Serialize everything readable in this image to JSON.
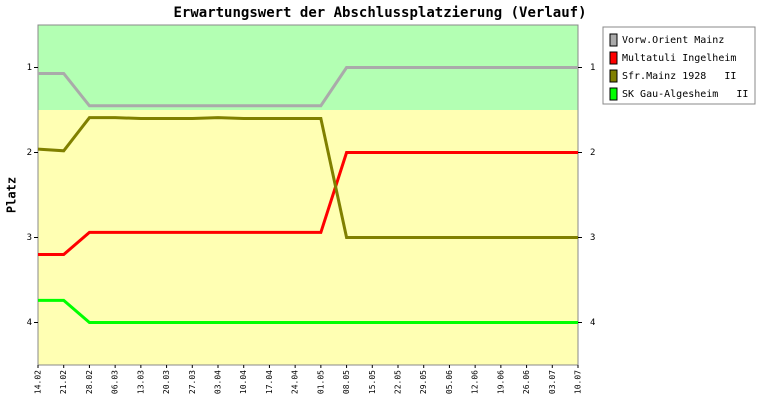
{
  "chart_data": {
    "type": "line",
    "title": "Erwartungswert der Abschlussplatzierung (Verlauf)",
    "y_label": "Platz",
    "categories": [
      "14.02",
      "21.02",
      "28.02",
      "06.03",
      "13.03",
      "20.03",
      "27.03",
      "03.04",
      "10.04",
      "17.04",
      "24.04",
      "01.05",
      "08.05",
      "15.05",
      "22.05",
      "29.05",
      "05.06",
      "12.06",
      "19.06",
      "26.06",
      "03.07",
      "10.07"
    ],
    "ylim": [
      4.5,
      0.5
    ],
    "yticks": [
      1,
      2,
      3,
      4
    ],
    "bands": [
      {
        "from": 0.5,
        "to": 1.5,
        "color": "#b3ffb3"
      },
      {
        "from": 1.5,
        "to": 4.5,
        "color": "#ffffb3"
      }
    ],
    "series": [
      {
        "name": "Vorw.Orient Mainz",
        "color": "#aaaaaa",
        "values": [
          1.07,
          1.07,
          1.45,
          1.45,
          1.45,
          1.45,
          1.45,
          1.45,
          1.45,
          1.45,
          1.45,
          1.45,
          1.0,
          1.0,
          1.0,
          1.0,
          1.0,
          1.0,
          1.0,
          1.0,
          1.0,
          1.0
        ]
      },
      {
        "name": "Multatuli Ingelheim",
        "color": "#ff0000",
        "values": [
          3.2,
          3.2,
          2.94,
          2.94,
          2.94,
          2.94,
          2.94,
          2.94,
          2.94,
          2.94,
          2.94,
          2.94,
          2.0,
          2.0,
          2.0,
          2.0,
          2.0,
          2.0,
          2.0,
          2.0,
          2.0,
          2.0
        ]
      },
      {
        "name": "Sfr.Mainz 1928   II",
        "color": "#808000",
        "values": [
          1.96,
          1.98,
          1.59,
          1.59,
          1.6,
          1.6,
          1.6,
          1.59,
          1.6,
          1.6,
          1.6,
          1.6,
          3.0,
          3.0,
          3.0,
          3.0,
          3.0,
          3.0,
          3.0,
          3.0,
          3.0,
          3.0
        ]
      },
      {
        "name": "SK Gau-Algesheim   II",
        "color": "#00ff00",
        "values": [
          3.74,
          3.74,
          4.0,
          4.0,
          4.0,
          4.0,
          4.0,
          4.0,
          4.0,
          4.0,
          4.0,
          4.0,
          4.0,
          4.0,
          4.0,
          4.0,
          4.0,
          4.0,
          4.0,
          4.0,
          4.0,
          4.0
        ]
      }
    ]
  }
}
